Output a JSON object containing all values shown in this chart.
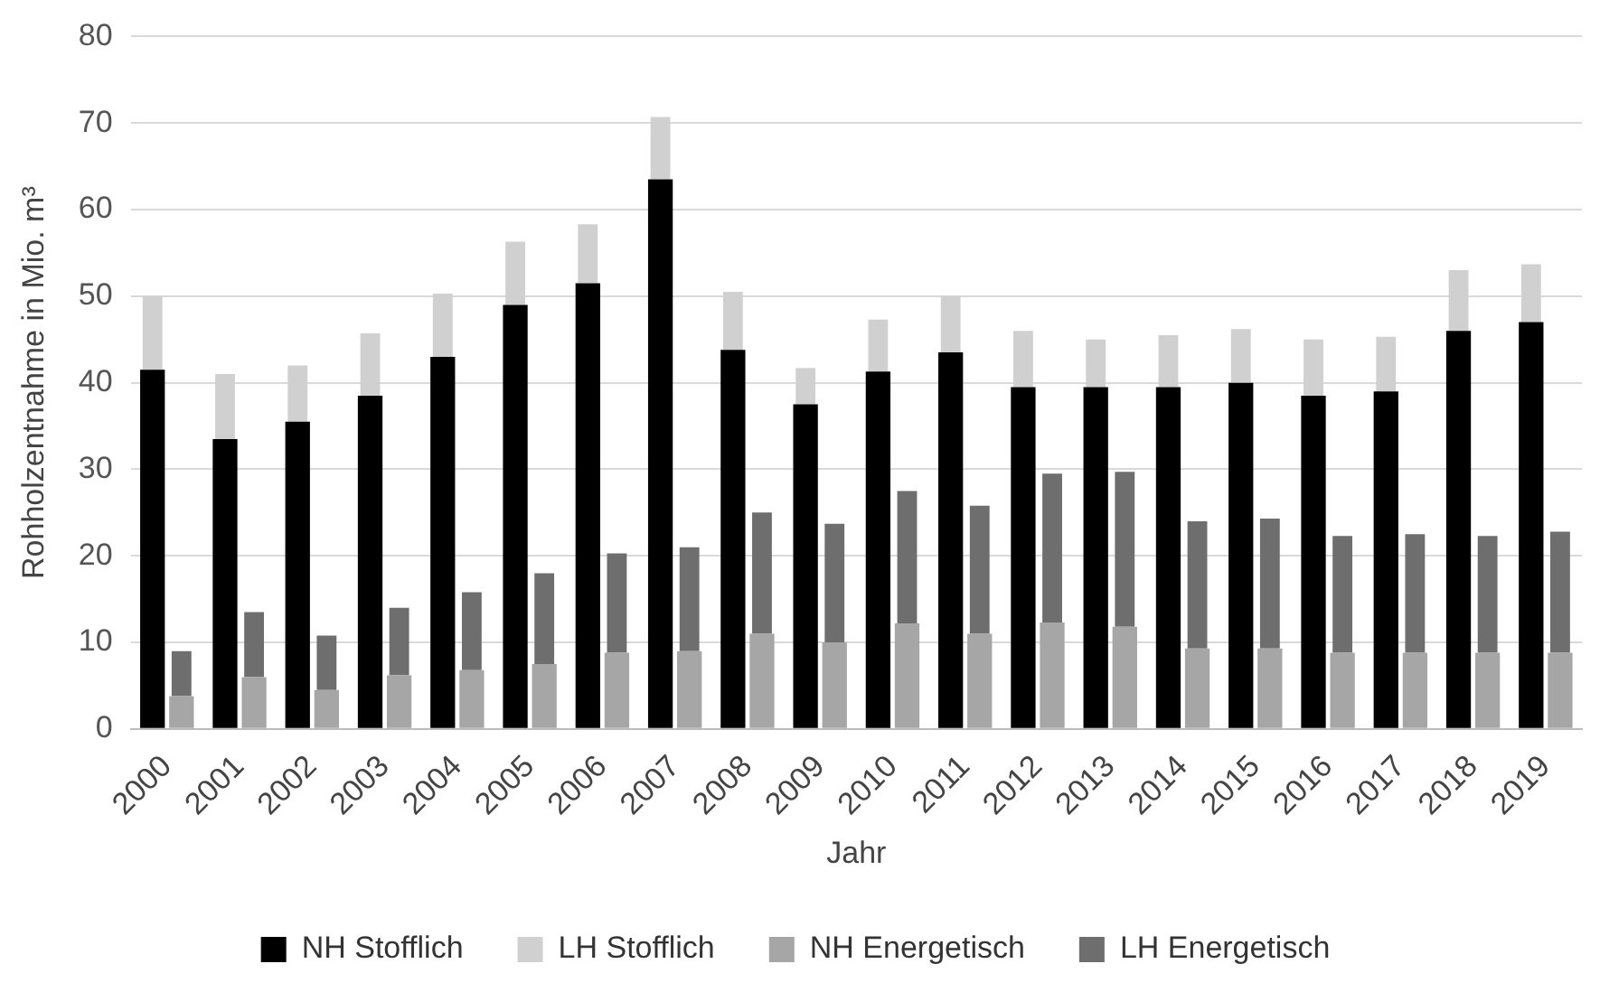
{
  "chart_data": {
    "type": "bar",
    "xlabel": "Jahr",
    "ylabel": "Rohholzentnahme in Mio. m³",
    "categories": [
      "2000",
      "2001",
      "2002",
      "2003",
      "2004",
      "2005",
      "2006",
      "2007",
      "2008",
      "2009",
      "2010",
      "2011",
      "2012",
      "2013",
      "2014",
      "2015",
      "2016",
      "2017",
      "2018",
      "2019"
    ],
    "series": [
      {
        "name": "NH Stofflich",
        "color": "#000000",
        "values": [
          41.5,
          33.5,
          35.5,
          38.5,
          43,
          49,
          51.5,
          63.5,
          43.8,
          37.5,
          41.3,
          43.5,
          39.5,
          39.5,
          39.5,
          40,
          38.5,
          39,
          46,
          47
        ]
      },
      {
        "name": "LH Stofflich",
        "color": "#d0d0d0",
        "base": [
          41.5,
          33.5,
          35.5,
          38.5,
          43,
          49,
          51.5,
          63.5,
          43.8,
          37.5,
          41.3,
          43.5,
          39.5,
          39.5,
          39.5,
          40,
          38.5,
          39,
          46,
          47
        ],
        "values": [
          8.5,
          7.5,
          6.5,
          7.2,
          7.3,
          7.3,
          6.8,
          7.2,
          6.7,
          4.2,
          6,
          6.5,
          6.5,
          5.5,
          6,
          6.2,
          6.5,
          6.3,
          7,
          6.7
        ]
      },
      {
        "name": "NH Energetisch",
        "color": "#a6a6a6",
        "values": [
          3.8,
          6,
          4.5,
          6.2,
          6.8,
          7.5,
          8.8,
          9,
          11,
          10,
          12.2,
          11,
          12.3,
          11.8,
          9.3,
          9.3,
          8.8,
          8.8,
          8.8,
          8.8
        ]
      },
      {
        "name": "LH Energetisch",
        "color": "#6e6e6e",
        "base": [
          3.8,
          6,
          4.5,
          6.2,
          6.8,
          7.5,
          8.8,
          9,
          11,
          10,
          12.2,
          11,
          12.3,
          11.8,
          9.3,
          9.3,
          8.8,
          8.8,
          8.8,
          8.8
        ],
        "values": [
          5.2,
          7.5,
          6.3,
          7.8,
          9,
          10.5,
          11.5,
          12,
          14,
          13.7,
          15.3,
          14.8,
          17.2,
          17.9,
          14.7,
          15,
          13.5,
          13.7,
          13.5,
          14
        ]
      }
    ],
    "ylim": [
      0,
      80
    ],
    "yticks": [
      0,
      10,
      20,
      30,
      40,
      50,
      60,
      70,
      80
    ],
    "grid": "y",
    "legend": "bottom"
  }
}
